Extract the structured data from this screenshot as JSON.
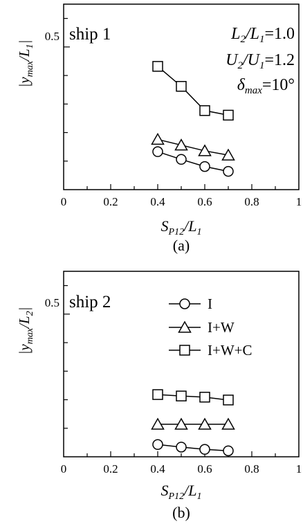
{
  "chart_data": [
    {
      "type": "line",
      "panel_label": "(a)",
      "panel_title": "ship 1",
      "annotations": [
        "L2/L1 = 1.0",
        "U2/U1 = 1.2",
        "δmax = 10°"
      ],
      "xlabel": "S_P12/L_1",
      "ylabel": "|y_max/L_1|",
      "xlim": [
        0,
        1
      ],
      "ylim": [
        0,
        0.65
      ],
      "x_ticks": [
        "0",
        "0.2",
        "0.4",
        "0.6",
        "0.8",
        "1"
      ],
      "y_ticks": [
        "0.5"
      ],
      "x": [
        0.4,
        0.5,
        0.6,
        0.7
      ],
      "series": [
        {
          "name": "I",
          "marker": "circle",
          "values": [
            0.133,
            0.106,
            0.081,
            0.064
          ]
        },
        {
          "name": "I+W",
          "marker": "triangle",
          "values": [
            0.176,
            0.156,
            0.136,
            0.121
          ]
        },
        {
          "name": "I+W+C",
          "marker": "square",
          "values": [
            0.432,
            0.362,
            0.277,
            0.261
          ]
        }
      ],
      "grid": false,
      "legend": "none"
    },
    {
      "type": "line",
      "panel_label": "(b)",
      "panel_title": "ship 2",
      "xlabel": "S_P12/L_1",
      "ylabel": "|y_max/L_2|",
      "xlim": [
        0,
        1
      ],
      "ylim": [
        0,
        0.65
      ],
      "x_ticks": [
        "0",
        "0.2",
        "0.4",
        "0.6",
        "0.8",
        "1"
      ],
      "y_ticks": [
        "0.5"
      ],
      "x": [
        0.4,
        0.5,
        0.6,
        0.7
      ],
      "series": [
        {
          "name": "I",
          "marker": "circle",
          "values": [
            0.043,
            0.034,
            0.026,
            0.021
          ]
        },
        {
          "name": "I+W",
          "marker": "triangle",
          "values": [
            0.114,
            0.114,
            0.114,
            0.114
          ]
        },
        {
          "name": "I+W+C",
          "marker": "square",
          "values": [
            0.218,
            0.213,
            0.209,
            0.199
          ]
        }
      ],
      "grid": false,
      "legend": "top-right"
    }
  ]
}
